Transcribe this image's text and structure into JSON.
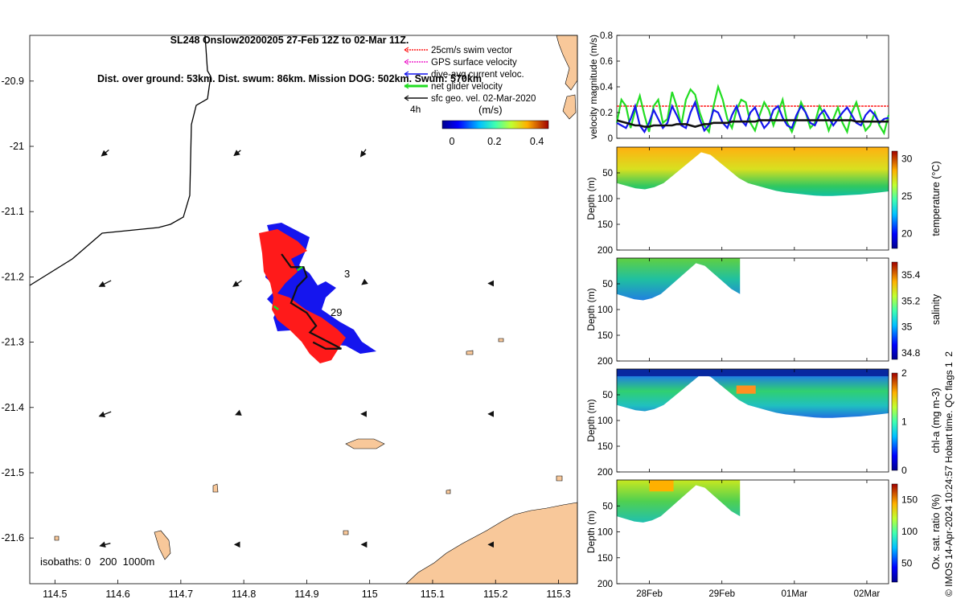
{
  "title": {
    "line1": "SL248 Onslow20200205 27-Feb 12Z to 02-Mar 11Z.",
    "line2": "Dist. over ground: 53km. Dist. swum: 86km. Mission DOG: 502km. Swum: 570km"
  },
  "colors": {
    "land": "#f8c89a",
    "swim_vector": "#ff1a1a",
    "gps_velocity": "#ee22cc",
    "current_velocity": "#1515ee",
    "net_velocity": "#22dd22",
    "geo_velocity": "#111111"
  },
  "map": {
    "legend": [
      {
        "key": "swim",
        "label": "25cm/s swim vector"
      },
      {
        "key": "gps",
        "label": "GPS surface velocity"
      },
      {
        "key": "current",
        "label": "dive-avg current veloc."
      },
      {
        "key": "net",
        "label": "net glider velocity"
      },
      {
        "key": "geo",
        "label": "sfc geo. vel. 02-Mar-2020"
      }
    ],
    "interval_label": "4h",
    "colorbar": {
      "title": "(m/s)",
      "ticks": [
        "0",
        "0.2",
        "0.4"
      ]
    },
    "annotations": [
      "3",
      "29"
    ],
    "isobath_label": "isobaths: 0   200  1000m"
  },
  "chart_data": [
    {
      "type": "line",
      "name": "glider track map",
      "x_ticks": [
        "114.5",
        "114.6",
        "114.7",
        "114.8",
        "114.9",
        "115",
        "115.1",
        "115.2",
        "115.3"
      ],
      "y_ticks": [
        "-20.9",
        "-21",
        "-21.1",
        "-21.2",
        "-21.3",
        "-21.4",
        "-21.5",
        "-21.6"
      ],
      "xlim": [
        114.46,
        115.33
      ],
      "ylim": [
        -21.67,
        -20.83
      ],
      "track": {
        "lon": [
          114.86,
          114.875,
          114.895,
          114.9,
          114.885,
          114.875,
          114.9,
          114.915,
          114.905,
          114.925,
          114.945,
          114.955,
          114.93,
          114.91
        ],
        "lat": [
          -21.165,
          -21.185,
          -21.185,
          -21.2,
          -21.215,
          -21.24,
          -21.255,
          -21.275,
          -21.285,
          -21.295,
          -21.305,
          -21.31,
          -21.31,
          -21.3
        ]
      },
      "geo_vectors": [
        {
          "lon": 114.58,
          "lat": -21.01,
          "u": 0.11,
          "v": 0.09
        },
        {
          "lon": 114.79,
          "lat": -21.01,
          "u": 0.1,
          "v": 0.08
        },
        {
          "lon": 114.99,
          "lat": -21.01,
          "u": 0.08,
          "v": 0.11
        },
        {
          "lon": 114.58,
          "lat": -21.21,
          "u": 0.18,
          "v": 0.09
        },
        {
          "lon": 114.79,
          "lat": -21.21,
          "u": 0.13,
          "v": 0.09
        },
        {
          "lon": 114.99,
          "lat": -21.21,
          "u": 0.04,
          "v": 0.03
        },
        {
          "lon": 115.19,
          "lat": -21.21,
          "u": 0.02,
          "v": 0.0
        },
        {
          "lon": 114.58,
          "lat": -21.41,
          "u": 0.18,
          "v": 0.07
        },
        {
          "lon": 114.79,
          "lat": -21.41,
          "u": 0.05,
          "v": 0.02
        },
        {
          "lon": 114.99,
          "lat": -21.41,
          "u": 0.06,
          "v": 0.0
        },
        {
          "lon": 115.19,
          "lat": -21.41,
          "u": 0.02,
          "v": 0.0
        },
        {
          "lon": 114.58,
          "lat": -21.61,
          "u": 0.16,
          "v": 0.04
        },
        {
          "lon": 114.79,
          "lat": -21.61,
          "u": 0.08,
          "v": 0.0
        },
        {
          "lon": 114.99,
          "lat": -21.61,
          "u": 0.05,
          "v": 0.0
        },
        {
          "lon": 115.19,
          "lat": -21.61,
          "u": 0.02,
          "v": 0.0
        }
      ]
    },
    {
      "type": "line",
      "ylabel": "velocity magnitude (m/s)",
      "ylim": [
        0,
        0.8
      ],
      "y_ticks": [
        "0",
        "0.2",
        "0.4",
        "0.6",
        "0.8"
      ],
      "x_ticks": [
        "28Feb",
        "29Feb",
        "01Mar",
        "02Mar"
      ],
      "xlim": [
        0,
        3.75
      ],
      "swim_reference": 0.25,
      "series": [
        {
          "key": "net",
          "values": [
            0.12,
            0.3,
            0.25,
            0.08,
            0.22,
            0.33,
            0.18,
            0.05,
            0.25,
            0.3,
            0.12,
            0.15,
            0.36,
            0.25,
            0.1,
            0.3,
            0.38,
            0.34,
            0.2,
            0.1,
            0.05,
            0.25,
            0.4,
            0.3,
            0.15,
            0.08,
            0.22,
            0.3,
            0.28,
            0.12,
            0.06,
            0.18,
            0.28,
            0.22,
            0.1,
            0.2,
            0.3,
            0.12,
            0.05,
            0.15,
            0.28,
            0.2,
            0.08,
            0.12,
            0.25,
            0.18,
            0.06,
            0.15,
            0.24,
            0.12,
            0.05,
            0.2,
            0.28,
            0.16,
            0.06,
            0.1,
            0.2,
            0.1,
            0.04,
            0.18
          ]
        },
        {
          "key": "current",
          "values": [
            0.12,
            0.1,
            0.08,
            0.15,
            0.25,
            0.1,
            0.05,
            0.12,
            0.22,
            0.15,
            0.08,
            0.12,
            0.25,
            0.18,
            0.1,
            0.08,
            0.2,
            0.28,
            0.15,
            0.06,
            0.1,
            0.22,
            0.2,
            0.12,
            0.08,
            0.18,
            0.25,
            0.14,
            0.1,
            0.2,
            0.24,
            0.15,
            0.08,
            0.12,
            0.22,
            0.25,
            0.16,
            0.1,
            0.08,
            0.18,
            0.25,
            0.2,
            0.12,
            0.1,
            0.18,
            0.22,
            0.16,
            0.1,
            0.15,
            0.2,
            0.24,
            0.18,
            0.12,
            0.1,
            0.18,
            0.22,
            0.18,
            0.12,
            0.15,
            0.16
          ]
        },
        {
          "key": "geo",
          "values": [
            0.14,
            0.13,
            0.12,
            0.11,
            0.1,
            0.1,
            0.09,
            0.09,
            0.1,
            0.1,
            0.1,
            0.1,
            0.1,
            0.11,
            0.11,
            0.11,
            0.1,
            0.09,
            0.1,
            0.11,
            0.11,
            0.12,
            0.12,
            0.12,
            0.12,
            0.13,
            0.13,
            0.13,
            0.13,
            0.13,
            0.13,
            0.14,
            0.14,
            0.14,
            0.14,
            0.14,
            0.14,
            0.14,
            0.14,
            0.14,
            0.14,
            0.14,
            0.14,
            0.14,
            0.14,
            0.14,
            0.14,
            0.14,
            0.14,
            0.14,
            0.14,
            0.14,
            0.13,
            0.13,
            0.13,
            0.13,
            0.13,
            0.13,
            0.13,
            0.13
          ]
        }
      ]
    },
    {
      "type": "heatmap",
      "ylabel": "Depth (m)",
      "clabel": "temperature (°C)",
      "clim": [
        18,
        31
      ],
      "c_ticks": [
        "20",
        "25",
        "30"
      ],
      "y_ticks": [
        "50",
        "100",
        "150",
        "200"
      ],
      "ylim": [
        200,
        0
      ],
      "x_end": 3.75,
      "bottom_depth": [
        70,
        75,
        80,
        82,
        78,
        70,
        55,
        40,
        25,
        10,
        15,
        30,
        45,
        60,
        70,
        75,
        80,
        85,
        88,
        90,
        92,
        94,
        95,
        95,
        94,
        93,
        92,
        90,
        88,
        86
      ]
    },
    {
      "type": "heatmap",
      "ylabel": "Depth (m)",
      "clabel": "salinity",
      "clim": [
        34.75,
        35.5
      ],
      "c_ticks": [
        "34.8",
        "35",
        "35.2",
        "35.4"
      ],
      "y_ticks": [
        "50",
        "100",
        "150",
        "200"
      ],
      "ylim": [
        200,
        0
      ],
      "x_end": 1.7,
      "bottom_depth": [
        70,
        75,
        80,
        82,
        78,
        70,
        55,
        40,
        25,
        10,
        15,
        30,
        45,
        60,
        70
      ]
    },
    {
      "type": "heatmap",
      "ylabel": "Depth (m)",
      "clabel": "chl-a (mg m-3)",
      "clim": [
        0,
        2
      ],
      "c_ticks": [
        "0",
        "1",
        "2"
      ],
      "y_ticks": [
        "50",
        "100",
        "150",
        "200"
      ],
      "ylim": [
        200,
        0
      ],
      "x_end": 3.75,
      "bottom_depth": [
        70,
        75,
        80,
        82,
        78,
        70,
        55,
        40,
        25,
        10,
        15,
        30,
        45,
        60,
        70,
        75,
        80,
        85,
        88,
        90,
        92,
        94,
        95,
        95,
        94,
        93,
        92,
        90,
        88,
        86
      ]
    },
    {
      "type": "heatmap",
      "ylabel": "Depth (m)",
      "clabel": "Ox. sat. ratio (%)",
      "clim": [
        20,
        175
      ],
      "c_ticks": [
        "50",
        "100",
        "150"
      ],
      "y_ticks": [
        "50",
        "100",
        "150",
        "200"
      ],
      "ylim": [
        200,
        0
      ],
      "x_end": 1.7,
      "bottom_depth": [
        70,
        75,
        80,
        82,
        78,
        70,
        55,
        40,
        25,
        10,
        15,
        30,
        45,
        60,
        70
      ]
    }
  ],
  "qc_note": "© IMOS 14-Apr-2024 10:24:57 Hobart time. QC flags 1  2"
}
